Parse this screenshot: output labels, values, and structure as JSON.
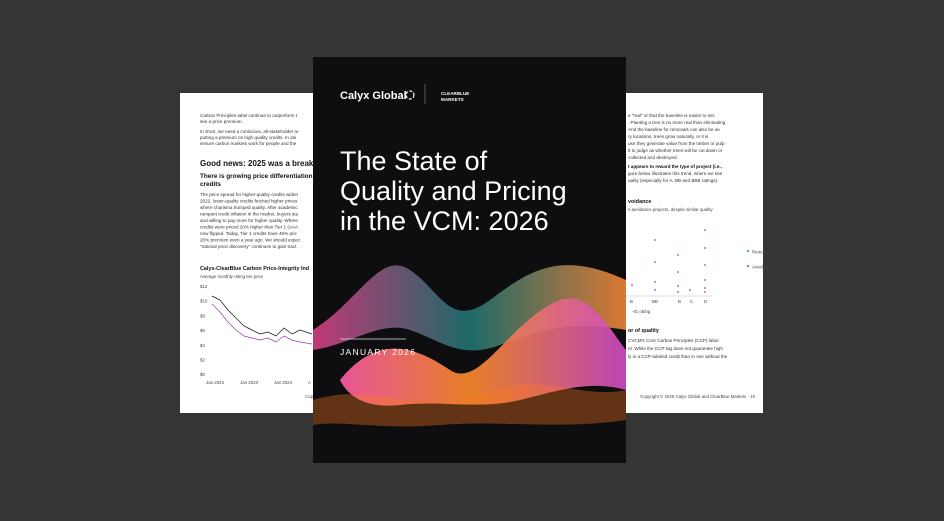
{
  "left_page": {
    "intro": [
      "Carbon Principles label continue to outperform t",
      "see a price premium.",
      "In short, we need a conscious, all-stakeholder re",
      "putting a premium on high quality credits. In doi",
      "ensure carbon markets work for people and the"
    ],
    "heading": "Good news: 2025 was a breakout",
    "subheading": [
      "There is growing price differentiation b",
      "credits"
    ],
    "body": [
      "The price spread for higher-quality credits widen",
      "2022, lower-quality credits fetched higher prices",
      "where charisma trumped quality. After academic",
      "rampant credit inflation in the market, buyers sta",
      "and willing to pay more for higher quality. Where",
      "credits were priced 20% higher than Tier 1 (AAA",
      "now flipped. Today, Tier 1 credits have 46% pric",
      "20% premium even a year ago. We should expec",
      "\"rational price discovery\" continues to gain tract"
    ],
    "chart_title": "Calyx-ClearBlue Carbon Price-Integrity Ind",
    "chart_subtitle": "Average monthly rating tier price",
    "yticks": [
      "$12",
      "$10",
      "$8",
      "$6",
      "$4",
      "$2",
      "$0"
    ],
    "xticks": [
      "Jan 2022",
      "Jan 2023",
      "Jan 2024",
      "A"
    ],
    "footer": "Copy"
  },
  "cover": {
    "logo": "Calyx Global",
    "partner": [
      "CLEARBLUE",
      "MARKETS"
    ],
    "title": [
      "The State of",
      "Quality and Pricing",
      "in the VCM: 2026"
    ],
    "date": "JANUARY 2026"
  },
  "right_page": {
    "body": [
      "e “real” or that the baseline is easier to set.",
      ". Planting a tree is no more real than eliminating",
      "And the baseline for removals can also be as",
      "ry locations, trees grow naturally, or it is",
      "use they generate value from the timber or pulp",
      "lt to judge as whether trees will be cut down or",
      "collected and destroyed."
    ],
    "bold": "t appears to reward the type of project (i.e.,",
    "body2": [
      "gure below illustrates this trend, where we see",
      "uality (especially for A, BB and BBB ratings)."
    ],
    "section": "voidance",
    "section_sub": "n avoidance projects, despite similar quality",
    "legend": [
      "Removals",
      "Avoidance"
    ],
    "xticks": [
      "B",
      "BB",
      "B",
      "C",
      "D"
    ],
    "xlabel": "-IG rating",
    "section2": "or of quality",
    "body3": [
      "CVCM's Core Carbon Principles (CCP) label",
      "nt. While the CCP tag does not guarantee high",
      "ly in a CCP-labeled credit than in one without the"
    ],
    "footer": "Copyright © 2026 Calyx Global and ClearBlue Markets · 10"
  }
}
